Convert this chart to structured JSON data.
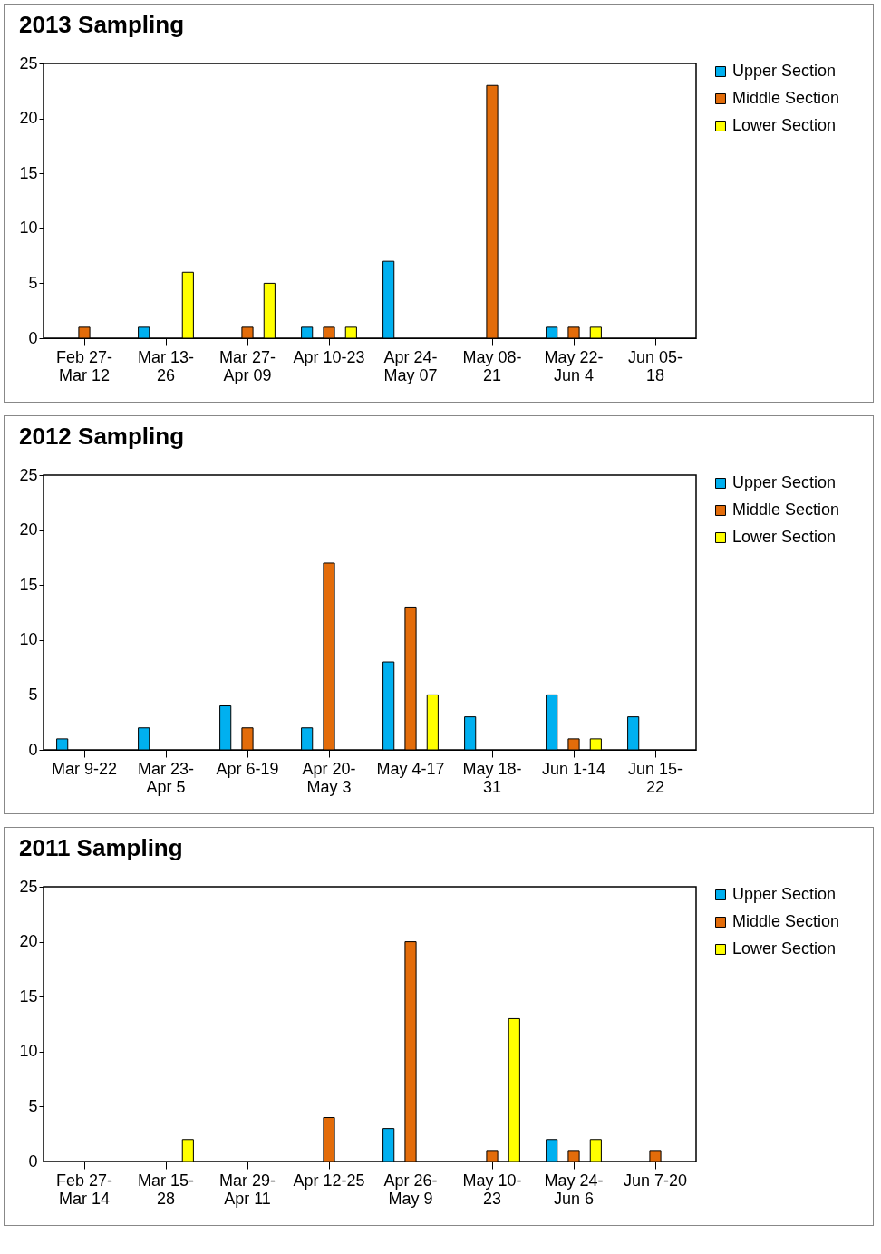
{
  "chart_data": [
    {
      "type": "bar",
      "title": "2013 Sampling",
      "categories": [
        "Feb 27- Mar 12",
        "Mar 13- 26",
        "Mar 27- Apr 09",
        "Apr 10-23",
        "Apr 24- May 07",
        "May 08- 21",
        "May 22- Jun 4",
        "Jun 05- 18"
      ],
      "series": [
        {
          "name": "Upper Section",
          "color": "#00b0f0",
          "values": [
            0,
            1,
            0,
            1,
            7,
            0,
            1,
            0
          ]
        },
        {
          "name": "Middle Section",
          "color": "#e36c0a",
          "values": [
            1,
            0,
            1,
            1,
            0,
            23,
            1,
            0
          ]
        },
        {
          "name": "Lower Section",
          "color": "#ffff00",
          "values": [
            0,
            6,
            5,
            1,
            0,
            0,
            1,
            0
          ]
        }
      ],
      "ylim": [
        0,
        25
      ],
      "yticks": [
        0,
        5,
        10,
        15,
        20,
        25
      ],
      "grid": false,
      "legend": "right"
    },
    {
      "type": "bar",
      "title": "2012 Sampling",
      "categories": [
        "Mar 9-22",
        "Mar 23- Apr 5",
        "Apr 6-19",
        "Apr 20- May 3",
        "May 4-17",
        "May 18- 31",
        "Jun 1-14",
        "Jun 15- 22"
      ],
      "series": [
        {
          "name": "Upper Section",
          "color": "#00b0f0",
          "values": [
            1,
            2,
            4,
            2,
            8,
            3,
            5,
            3
          ]
        },
        {
          "name": "Middle Section",
          "color": "#e36c0a",
          "values": [
            0,
            0,
            2,
            17,
            13,
            0,
            1,
            0
          ]
        },
        {
          "name": "Lower Section",
          "color": "#ffff00",
          "values": [
            0,
            0,
            0,
            0,
            5,
            0,
            1,
            0
          ]
        }
      ],
      "ylim": [
        0,
        25
      ],
      "yticks": [
        0,
        5,
        10,
        15,
        20,
        25
      ],
      "grid": false,
      "legend": "right"
    },
    {
      "type": "bar",
      "title": "2011 Sampling",
      "categories": [
        "Feb 27- Mar 14",
        "Mar 15- 28",
        "Mar 29- Apr 11",
        "Apr 12-25",
        "Apr 26- May 9",
        "May 10- 23",
        "May 24- Jun 6",
        "Jun 7-20"
      ],
      "series": [
        {
          "name": "Upper Section",
          "color": "#00b0f0",
          "values": [
            0,
            0,
            0,
            0,
            3,
            0,
            2,
            0
          ]
        },
        {
          "name": "Middle Section",
          "color": "#e36c0a",
          "values": [
            0,
            0,
            0,
            4,
            20,
            1,
            1,
            1
          ]
        },
        {
          "name": "Lower Section",
          "color": "#ffff00",
          "values": [
            0,
            2,
            0,
            0,
            0,
            13,
            2,
            0
          ]
        }
      ],
      "ylim": [
        0,
        25
      ],
      "yticks": [
        0,
        5,
        10,
        15,
        20,
        25
      ],
      "grid": false,
      "legend": "right"
    }
  ]
}
